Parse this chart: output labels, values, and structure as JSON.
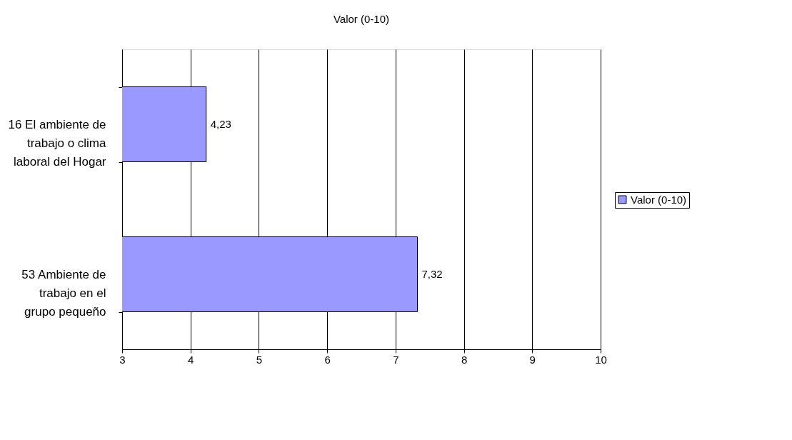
{
  "chart_data": {
    "type": "bar",
    "orientation": "horizontal",
    "title": "Valor (0-10)",
    "categories": [
      "16 El ambiente de trabajo o clima laboral del Hogar",
      "53 Ambiente de trabajo en el grupo pequeño"
    ],
    "series": [
      {
        "name": "Valor (0-10)",
        "color": "#9999ff",
        "values": [
          4.23,
          7.32
        ],
        "value_labels": [
          "4,23",
          "7,32"
        ]
      }
    ],
    "xlim": [
      3,
      10
    ],
    "xticks": [
      3,
      4,
      5,
      6,
      7,
      8,
      9,
      10
    ],
    "grid": "x",
    "legend": "right"
  }
}
